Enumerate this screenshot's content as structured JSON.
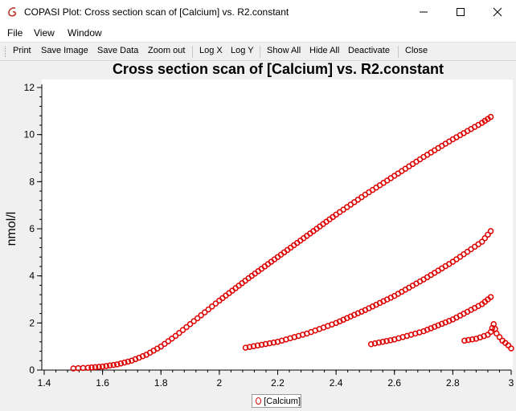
{
  "window": {
    "title": "COPASI Plot: Cross section scan of [Calcium] vs. R2.constant",
    "app_icon": "copasi-logo-icon"
  },
  "menu": [
    "File",
    "View",
    "Window"
  ],
  "toolbar": [
    "Print",
    "Save Image",
    "Save Data",
    "Zoom out",
    "Log X",
    "Log Y",
    "Show All",
    "Hide All",
    "Deactivate",
    "Close"
  ],
  "colors": {
    "series": "#dd0000",
    "background": "#f0f0f0",
    "canvas": "#ffffff"
  },
  "chart_data": {
    "type": "scatter",
    "title": "Cross section scan of [Calcium] vs. R2.constant",
    "xlabel": "",
    "ylabel": "nmol/l",
    "xlim": [
      1.4,
      3.0
    ],
    "ylim": [
      0,
      12
    ],
    "xticks": [
      "1.4",
      "1.6",
      "1.8",
      "2",
      "2.2",
      "2.4",
      "2.6",
      "2.8",
      "3"
    ],
    "yticks": [
      "0",
      "2",
      "4",
      "6",
      "8",
      "10",
      "12"
    ],
    "grid": false,
    "legend": "bottom",
    "series": [
      {
        "name": "[Calcium]",
        "marker": "open-circle",
        "branches": [
          {
            "points": [
              [
                1.5,
                0.07
              ],
              [
                1.55,
                0.1
              ],
              [
                1.6,
                0.15
              ],
              [
                1.65,
                0.24
              ],
              [
                1.7,
                0.4
              ],
              [
                1.75,
                0.65
              ],
              [
                1.8,
                1.0
              ],
              [
                1.85,
                1.45
              ],
              [
                1.9,
                1.95
              ],
              [
                1.95,
                2.45
              ],
              [
                2.0,
                2.95
              ],
              [
                2.1,
                3.9
              ],
              [
                2.2,
                4.8
              ],
              [
                2.3,
                5.7
              ],
              [
                2.4,
                6.6
              ],
              [
                2.5,
                7.45
              ],
              [
                2.6,
                8.25
              ],
              [
                2.7,
                9.05
              ],
              [
                2.8,
                9.8
              ],
              [
                2.9,
                10.5
              ],
              [
                2.93,
                10.75
              ]
            ]
          },
          {
            "points": [
              [
                2.09,
                0.95
              ],
              [
                2.2,
                1.2
              ],
              [
                2.3,
                1.55
              ],
              [
                2.4,
                2.0
              ],
              [
                2.5,
                2.55
              ],
              [
                2.6,
                3.15
              ],
              [
                2.7,
                3.85
              ],
              [
                2.8,
                4.6
              ],
              [
                2.9,
                5.45
              ],
              [
                2.93,
                5.9
              ]
            ]
          },
          {
            "points": [
              [
                2.52,
                1.1
              ],
              [
                2.6,
                1.3
              ],
              [
                2.7,
                1.65
              ],
              [
                2.8,
                2.15
              ],
              [
                2.9,
                2.8
              ],
              [
                2.93,
                3.1
              ]
            ]
          },
          {
            "points": [
              [
                2.84,
                1.25
              ],
              [
                2.88,
                1.33
              ],
              [
                2.92,
                1.5
              ],
              [
                2.93,
                1.62
              ],
              [
                2.94,
                1.95
              ],
              [
                2.95,
                1.55
              ],
              [
                2.97,
                1.25
              ],
              [
                2.99,
                1.05
              ],
              [
                3.0,
                0.92
              ]
            ]
          }
        ]
      }
    ]
  }
}
